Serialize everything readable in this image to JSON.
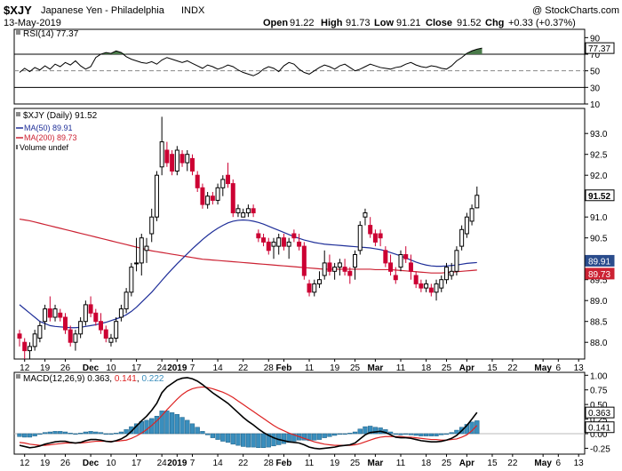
{
  "header": {
    "symbol": "$XJY",
    "name": "Japanese Yen - Philadelphia",
    "exchange": "INDX",
    "watermark": "@ StockCharts.com",
    "date": "13-May-2019",
    "open_label": "Open",
    "open": "91.22",
    "high_label": "High",
    "high": "91.73",
    "low_label": "Low",
    "low": "91.21",
    "close_label": "Close",
    "close": "91.52",
    "chg_label": "Chg",
    "chg": "+0.33 (+0.37%)"
  },
  "colors": {
    "up": "#000000",
    "down": "#cc0033",
    "ma50": "#1f2f99",
    "ma200": "#cc2233",
    "histogram": "#3a8ebd",
    "macd": "#000000",
    "signal": "#dd2222",
    "rsi_fill": "#4a7a4a",
    "price_tag": "#2a4c8c",
    "price_tag_ma200": "#cc2233"
  },
  "chart_data": [
    {
      "type": "line",
      "panel": "RSI",
      "legend": "RSI(14) 77.37",
      "last_value": "77.37",
      "ylim": [
        10,
        100
      ],
      "y_ticks": [
        "90",
        "70",
        "50",
        "30",
        "10"
      ],
      "levels": [
        70,
        50,
        30
      ],
      "values": [
        48,
        53,
        49,
        54,
        51,
        56,
        52,
        58,
        55,
        60,
        57,
        62,
        56,
        52,
        55,
        66,
        70,
        72,
        71,
        74,
        72,
        67,
        64,
        62,
        60,
        59,
        61,
        58,
        63,
        66,
        64,
        62,
        60,
        62,
        59,
        56,
        53,
        57,
        55,
        52,
        54,
        57,
        55,
        51,
        48,
        46,
        44,
        47,
        52,
        55,
        53,
        49,
        56,
        60,
        58,
        52,
        48,
        46,
        50,
        54,
        57,
        55,
        52,
        56,
        58,
        54,
        50,
        52,
        55,
        58,
        56,
        54,
        53,
        52,
        54,
        55,
        58,
        60,
        57,
        55,
        54,
        56,
        55,
        53,
        52,
        56,
        62,
        66,
        71,
        74,
        76,
        77.37
      ]
    },
    {
      "type": "candlestick",
      "panel": "Price",
      "legend": "$XJY (Daily) 91.52",
      "ylim": [
        87.6,
        93.6
      ],
      "y_ticks": [
        "93.0",
        "92.5",
        "92.0",
        "91.5",
        "91.0",
        "90.5",
        "90.0",
        "89.5",
        "89.0",
        "88.5",
        "88.0"
      ],
      "last_close": "91.52",
      "ohlc": [
        [
          88.2,
          88.3,
          87.9,
          88.1
        ],
        [
          88.0,
          88.1,
          87.6,
          87.8
        ],
        [
          87.8,
          88.0,
          87.6,
          87.9
        ],
        [
          87.9,
          88.3,
          87.8,
          88.2
        ],
        [
          88.1,
          88.5,
          88.0,
          88.4
        ],
        [
          88.5,
          88.9,
          88.3,
          88.8
        ],
        [
          88.8,
          89.1,
          88.5,
          88.6
        ],
        [
          88.6,
          88.9,
          88.5,
          88.8
        ],
        [
          88.7,
          88.8,
          88.5,
          88.6
        ],
        [
          88.6,
          88.7,
          88.2,
          88.3
        ],
        [
          88.3,
          88.4,
          87.9,
          88.0
        ],
        [
          88.0,
          88.3,
          87.8,
          88.2
        ],
        [
          88.2,
          88.6,
          88.1,
          88.5
        ],
        [
          88.5,
          89.0,
          88.4,
          88.9
        ],
        [
          88.9,
          89.1,
          88.6,
          88.7
        ],
        [
          88.7,
          88.8,
          88.4,
          88.5
        ],
        [
          88.5,
          88.7,
          88.2,
          88.3
        ],
        [
          88.3,
          88.4,
          88.0,
          88.1
        ],
        [
          88.0,
          88.2,
          87.9,
          88.1
        ],
        [
          88.1,
          88.6,
          88.0,
          88.5
        ],
        [
          88.6,
          88.9,
          88.5,
          88.8
        ],
        [
          88.8,
          89.3,
          88.7,
          89.2
        ],
        [
          89.2,
          89.9,
          89.1,
          89.8
        ],
        [
          89.9,
          90.5,
          89.7,
          89.9
        ],
        [
          89.9,
          90.6,
          89.6,
          90.5
        ],
        [
          90.2,
          90.5,
          89.9,
          90.3
        ],
        [
          90.6,
          91.2,
          90.4,
          91.0
        ],
        [
          91.0,
          92.1,
          90.9,
          92.0
        ],
        [
          92.2,
          93.4,
          92.0,
          92.8
        ],
        [
          92.6,
          92.8,
          92.2,
          92.3
        ],
        [
          92.5,
          92.6,
          92.0,
          92.1
        ],
        [
          92.1,
          92.7,
          92.0,
          92.6
        ],
        [
          92.5,
          92.6,
          92.2,
          92.3
        ],
        [
          92.3,
          92.6,
          92.1,
          92.5
        ],
        [
          92.4,
          92.5,
          92.0,
          92.1
        ],
        [
          92.0,
          92.1,
          91.6,
          91.7
        ],
        [
          91.7,
          91.8,
          91.2,
          91.3
        ],
        [
          91.3,
          91.6,
          91.2,
          91.5
        ],
        [
          91.5,
          91.6,
          91.3,
          91.4
        ],
        [
          91.4,
          91.8,
          91.3,
          91.7
        ],
        [
          91.7,
          92.0,
          91.5,
          91.9
        ],
        [
          92.0,
          92.3,
          91.7,
          91.8
        ],
        [
          91.8,
          91.9,
          91.0,
          91.1
        ],
        [
          91.1,
          91.3,
          91.0,
          91.2
        ],
        [
          91.0,
          91.2,
          91.0,
          91.1
        ],
        [
          91.1,
          91.3,
          91.0,
          91.2
        ],
        [
          91.2,
          91.3,
          91.0,
          91.1
        ],
        [
          90.6,
          90.7,
          90.4,
          90.5
        ],
        [
          90.5,
          90.6,
          90.3,
          90.4
        ],
        [
          90.4,
          90.5,
          90.1,
          90.2
        ],
        [
          90.3,
          90.5,
          90.0,
          90.4
        ],
        [
          90.3,
          90.6,
          90.1,
          90.5
        ],
        [
          90.5,
          90.6,
          90.2,
          90.3
        ],
        [
          90.3,
          90.5,
          90.0,
          90.4
        ],
        [
          90.6,
          90.7,
          90.4,
          90.5
        ],
        [
          90.4,
          90.6,
          90.2,
          90.3
        ],
        [
          90.3,
          90.4,
          89.5,
          89.6
        ],
        [
          89.4,
          89.5,
          89.1,
          89.2
        ],
        [
          89.2,
          89.5,
          89.1,
          89.4
        ],
        [
          89.4,
          89.7,
          89.3,
          89.5
        ],
        [
          89.6,
          90.2,
          89.5,
          89.9
        ],
        [
          89.9,
          90.1,
          89.6,
          89.7
        ],
        [
          89.7,
          89.9,
          89.5,
          89.8
        ],
        [
          89.8,
          90.0,
          89.6,
          89.9
        ],
        [
          89.8,
          90.0,
          89.6,
          89.7
        ],
        [
          89.7,
          89.8,
          89.4,
          89.6
        ],
        [
          89.8,
          90.2,
          89.5,
          90.1
        ],
        [
          90.2,
          90.9,
          90.1,
          90.8
        ],
        [
          91.0,
          91.2,
          90.8,
          91.1
        ],
        [
          90.8,
          91.0,
          90.5,
          90.6
        ],
        [
          90.6,
          90.7,
          90.3,
          90.4
        ],
        [
          90.6,
          90.7,
          90.3,
          90.5
        ],
        [
          90.2,
          90.3,
          89.8,
          89.9
        ],
        [
          89.9,
          90.1,
          89.6,
          89.7
        ],
        [
          89.6,
          89.8,
          89.4,
          89.5
        ],
        [
          89.8,
          90.2,
          89.7,
          90.1
        ],
        [
          90.1,
          90.3,
          89.9,
          90.0
        ],
        [
          89.9,
          90.1,
          89.5,
          89.7
        ],
        [
          89.6,
          89.7,
          89.3,
          89.4
        ],
        [
          89.4,
          89.5,
          89.2,
          89.3
        ],
        [
          89.3,
          89.5,
          89.2,
          89.4
        ],
        [
          89.3,
          89.4,
          89.1,
          89.2
        ],
        [
          89.2,
          89.5,
          89.0,
          89.4
        ],
        [
          89.3,
          89.6,
          89.2,
          89.5
        ],
        [
          89.5,
          89.9,
          89.4,
          89.8
        ],
        [
          89.6,
          89.9,
          89.5,
          89.7
        ],
        [
          89.7,
          90.3,
          89.6,
          90.2
        ],
        [
          90.3,
          90.8,
          90.2,
          90.7
        ],
        [
          90.6,
          91.1,
          90.5,
          91.0
        ],
        [
          90.9,
          91.3,
          90.8,
          91.2
        ],
        [
          91.22,
          91.73,
          91.21,
          91.52
        ]
      ],
      "series": [
        {
          "name": "MA(50) 89.91",
          "last": "89.91"
        },
        {
          "name": "MA(200) 89.73",
          "last": "89.73"
        }
      ],
      "ma50": [
        88.9,
        88.8,
        88.7,
        88.6,
        88.5,
        88.45,
        88.4,
        88.38,
        88.37,
        88.36,
        88.35,
        88.35,
        88.36,
        88.38,
        88.4,
        88.42,
        88.45,
        88.48,
        88.52,
        88.56,
        88.6,
        88.66,
        88.74,
        88.84,
        88.96,
        89.08,
        89.2,
        89.34,
        89.48,
        89.62,
        89.75,
        89.88,
        90.0,
        90.12,
        90.24,
        90.35,
        90.46,
        90.56,
        90.65,
        90.73,
        90.8,
        90.86,
        90.9,
        90.92,
        90.93,
        90.92,
        90.9,
        90.87,
        90.83,
        90.78,
        90.73,
        90.68,
        90.63,
        90.58,
        90.53,
        90.49,
        90.45,
        90.42,
        90.39,
        90.37,
        90.35,
        90.34,
        90.33,
        90.32,
        90.31,
        90.3,
        90.29,
        90.28,
        90.27,
        90.26,
        90.24,
        90.22,
        90.19,
        90.15,
        90.11,
        90.07,
        90.02,
        89.97,
        89.92,
        89.88,
        89.85,
        89.83,
        89.82,
        89.82,
        89.83,
        89.84,
        89.85,
        89.87,
        89.89,
        89.9,
        89.91
      ],
      "ma200": [
        90.95,
        90.93,
        90.91,
        90.88,
        90.85,
        90.82,
        90.79,
        90.76,
        90.73,
        90.7,
        90.67,
        90.64,
        90.61,
        90.58,
        90.55,
        90.52,
        90.49,
        90.46,
        90.43,
        90.4,
        90.37,
        90.34,
        90.31,
        90.28,
        90.25,
        90.22,
        90.19,
        90.17,
        90.15,
        90.13,
        90.11,
        90.09,
        90.07,
        90.05,
        90.03,
        90.01,
        89.99,
        89.98,
        89.97,
        89.96,
        89.95,
        89.94,
        89.93,
        89.92,
        89.91,
        89.9,
        89.89,
        89.88,
        89.87,
        89.86,
        89.85,
        89.84,
        89.83,
        89.82,
        89.81,
        89.8,
        89.79,
        89.78,
        89.77,
        89.76,
        89.75,
        89.75,
        89.75,
        89.75,
        89.75,
        89.75,
        89.75,
        89.75,
        89.75,
        89.75,
        89.74,
        89.74,
        89.74,
        89.74,
        89.73,
        89.72,
        89.71,
        89.7,
        89.69,
        89.68,
        89.67,
        89.66,
        89.66,
        89.66,
        89.67,
        89.68,
        89.69,
        89.7,
        89.71,
        89.72,
        89.73
      ],
      "extra_legend": "Volume undef"
    },
    {
      "type": "line",
      "panel": "MACD",
      "legend_prefix": "MACD(12,26,9)",
      "legend_values": [
        "0.363",
        "0.141",
        "0.222"
      ],
      "ylim": [
        -0.35,
        1.05
      ],
      "y_ticks": [
        "1.00",
        "0.75",
        "0.50",
        "0.25",
        "0.00",
        "-0.25"
      ],
      "last_macd": "0.363",
      "last_signal": "0.141",
      "macd": [
        -0.2,
        -0.22,
        -0.24,
        -0.23,
        -0.21,
        -0.18,
        -0.16,
        -0.14,
        -0.13,
        -0.13,
        -0.15,
        -0.16,
        -0.15,
        -0.12,
        -0.1,
        -0.1,
        -0.11,
        -0.13,
        -0.14,
        -0.12,
        -0.09,
        -0.04,
        0.04,
        0.13,
        0.22,
        0.3,
        0.4,
        0.52,
        0.7,
        0.8,
        0.86,
        0.92,
        0.95,
        0.96,
        0.94,
        0.9,
        0.84,
        0.77,
        0.7,
        0.64,
        0.58,
        0.52,
        0.44,
        0.36,
        0.28,
        0.21,
        0.15,
        0.08,
        0.02,
        -0.03,
        -0.07,
        -0.1,
        -0.12,
        -0.14,
        -0.15,
        -0.16,
        -0.19,
        -0.23,
        -0.25,
        -0.26,
        -0.25,
        -0.24,
        -0.23,
        -0.21,
        -0.2,
        -0.19,
        -0.16,
        -0.09,
        -0.02,
        0.02,
        0.03,
        0.04,
        0.02,
        -0.02,
        -0.06,
        -0.07,
        -0.07,
        -0.08,
        -0.1,
        -0.12,
        -0.13,
        -0.14,
        -0.14,
        -0.13,
        -0.11,
        -0.08,
        -0.03,
        0.05,
        0.14,
        0.25,
        0.363
      ],
      "signal": [
        -0.15,
        -0.16,
        -0.18,
        -0.19,
        -0.2,
        -0.2,
        -0.19,
        -0.18,
        -0.17,
        -0.16,
        -0.16,
        -0.16,
        -0.16,
        -0.15,
        -0.14,
        -0.13,
        -0.13,
        -0.13,
        -0.13,
        -0.13,
        -0.12,
        -0.11,
        -0.08,
        -0.04,
        0.01,
        0.07,
        0.14,
        0.22,
        0.31,
        0.41,
        0.5,
        0.59,
        0.67,
        0.73,
        0.77,
        0.79,
        0.8,
        0.79,
        0.77,
        0.74,
        0.71,
        0.67,
        0.62,
        0.56,
        0.5,
        0.44,
        0.38,
        0.32,
        0.26,
        0.2,
        0.14,
        0.09,
        0.05,
        0.01,
        -0.02,
        -0.05,
        -0.08,
        -0.11,
        -0.14,
        -0.16,
        -0.18,
        -0.19,
        -0.2,
        -0.2,
        -0.2,
        -0.2,
        -0.19,
        -0.17,
        -0.14,
        -0.11,
        -0.08,
        -0.06,
        -0.05,
        -0.05,
        -0.05,
        -0.05,
        -0.06,
        -0.06,
        -0.07,
        -0.08,
        -0.09,
        -0.1,
        -0.1,
        -0.11,
        -0.11,
        -0.1,
        -0.09,
        -0.06,
        -0.02,
        0.05,
        0.141
      ]
    }
  ],
  "x_axis": {
    "labels": [
      {
        "i": 1,
        "text": "12"
      },
      {
        "i": 5,
        "text": "19"
      },
      {
        "i": 9,
        "text": "26"
      },
      {
        "i": 14,
        "text": "Dec",
        "bold": true
      },
      {
        "i": 18,
        "text": "10"
      },
      {
        "i": 23,
        "text": "17"
      },
      {
        "i": 28,
        "text": "24"
      },
      {
        "i": 31,
        "text": "2019",
        "bold": true
      },
      {
        "i": 34,
        "text": "7"
      },
      {
        "i": 39,
        "text": "14"
      },
      {
        "i": 44,
        "text": "22"
      },
      {
        "i": 49,
        "text": "28"
      },
      {
        "i": 52,
        "text": "Feb",
        "bold": true
      },
      {
        "i": 57,
        "text": "11"
      },
      {
        "i": 62,
        "text": "19"
      },
      {
        "i": 66,
        "text": "25"
      },
      {
        "i": 70,
        "text": "Mar",
        "bold": true
      },
      {
        "i": 75,
        "text": "11"
      },
      {
        "i": 80,
        "text": "18"
      },
      {
        "i": 84,
        "text": "25"
      },
      {
        "i": 88,
        "text": "Apr",
        "bold": true
      },
      {
        "i": 93,
        "text": "15"
      },
      {
        "i": 97,
        "text": "22"
      },
      {
        "i": 103,
        "text": "May",
        "bold": true
      },
      {
        "i": 106,
        "text": "6"
      },
      {
        "i": 110,
        "text": "13"
      }
    ]
  }
}
